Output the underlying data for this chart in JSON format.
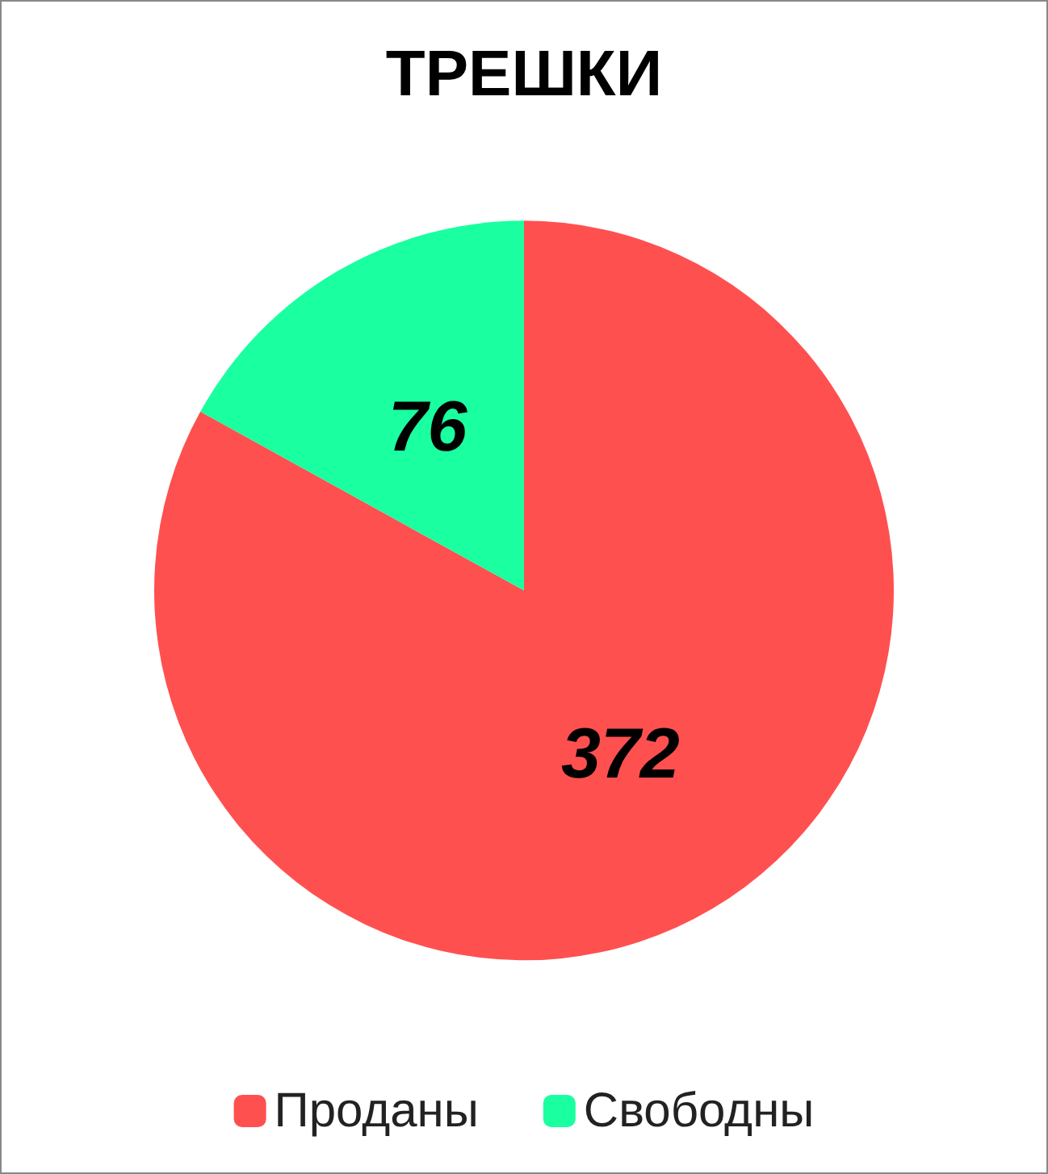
{
  "chart_data": {
    "type": "pie",
    "title": "ТРЕШКИ",
    "categories": [
      "Проданы",
      "Свободны"
    ],
    "values": [
      372,
      76
    ],
    "colors": [
      "#ff5050",
      "#1affa0"
    ],
    "data_labels": true,
    "legend": "bottom"
  }
}
